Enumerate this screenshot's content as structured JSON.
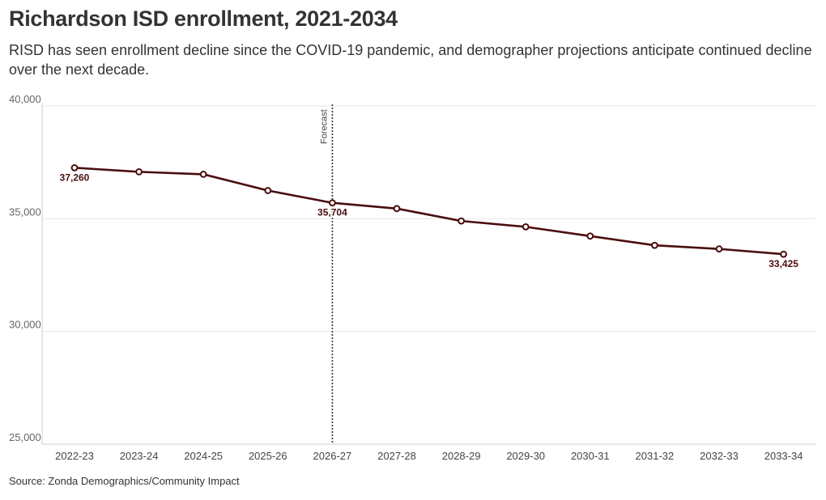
{
  "title": "Richardson ISD enrollment, 2021-2034",
  "subtitle": "RISD has seen enrollment decline since the COVID-19 pandemic, and demographer projections anticipate continued decline over the next decade.",
  "source": "Source: Zonda Demographics/Community Impact",
  "colors": {
    "line": "#4b0d0d",
    "grid": "#e6e6e6",
    "text": "#333333"
  },
  "chart_data": {
    "type": "line",
    "categories": [
      "2022-23",
      "2023-24",
      "2024-25",
      "2025-26",
      "2026-27",
      "2027-28",
      "2028-29",
      "2029-30",
      "2030-31",
      "2031-32",
      "2032-33",
      "2033-34"
    ],
    "series": [
      {
        "values": [
          37260,
          37080,
          36970,
          36250,
          35704,
          35450,
          34900,
          34640,
          34230,
          33820,
          33660,
          33425
        ]
      }
    ],
    "data_labels": [
      {
        "category": "2022-23",
        "text": "37,260"
      },
      {
        "category": "2026-27",
        "text": "35,704"
      },
      {
        "category": "2033-34",
        "text": "33,425"
      }
    ],
    "ylim": [
      25000,
      40000
    ],
    "yticks": [
      25000,
      30000,
      35000,
      40000
    ],
    "ytick_labels": [
      "25,000",
      "30,000",
      "35,000",
      "40,000"
    ],
    "grid": true,
    "annotation": {
      "category": "2026-27",
      "text": "Forecast",
      "style": "dotted vertical line"
    },
    "xlabel": "",
    "ylabel": ""
  }
}
